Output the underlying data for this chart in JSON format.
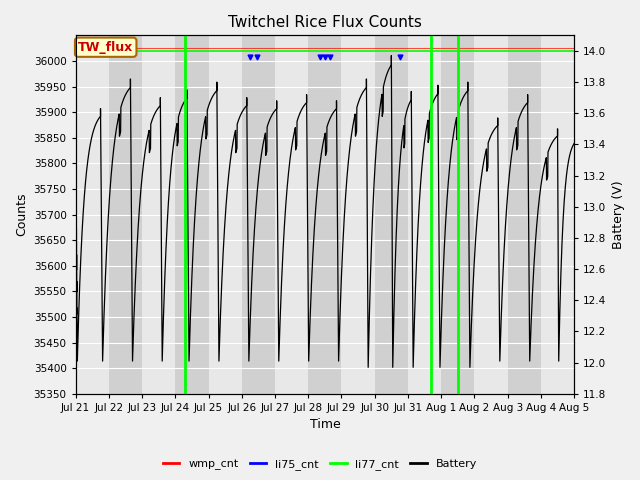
{
  "title": "Twitchel Rice Flux Counts",
  "xlabel": "Time",
  "ylabel_left": "Counts",
  "ylabel_right": "Battery (V)",
  "ylim_left": [
    35350,
    36050
  ],
  "ylim_right": [
    11.8,
    14.1
  ],
  "yticks_left": [
    35350,
    35400,
    35450,
    35500,
    35550,
    35600,
    35650,
    35700,
    35750,
    35800,
    35850,
    35900,
    35950,
    36000
  ],
  "yticks_right": [
    11.8,
    12.0,
    12.2,
    12.4,
    12.6,
    12.8,
    13.0,
    13.2,
    13.4,
    13.6,
    13.8,
    14.0
  ],
  "xtick_labels": [
    "Jul 21",
    "Jul 22",
    "Jul 23",
    "Jul 24",
    "Jul 25",
    "Jul 26",
    "Jul 27",
    "Jul 28",
    "Jul 29",
    "Jul 30",
    "Jul 31",
    "Aug 1",
    "Aug 2",
    "Aug 3",
    "Aug 4",
    "Aug 5"
  ],
  "n_days": 15,
  "annotation_text": "TW_flux",
  "annotation_bg": "#ffffcc",
  "annotation_border": "#aa6600",
  "annotation_text_color": "#cc0000",
  "li77_color": "#00ff00",
  "battery_color": "#000000",
  "wmp_color": "#ff0000",
  "li75_color": "#0000ff",
  "legend_labels": [
    "wmp_cnt",
    "li75_cnt",
    "li77_cnt",
    "Battery"
  ],
  "green_vlines": [
    3.3,
    10.7,
    11.5
  ],
  "li75_dots_x": [
    5.25,
    5.45,
    7.35,
    7.5,
    7.65,
    9.75
  ],
  "v_min": 11.8,
  "v_max": 14.1,
  "c_min": 35350,
  "c_max": 36050,
  "figsize": [
    6.4,
    4.8
  ],
  "dpi": 100
}
